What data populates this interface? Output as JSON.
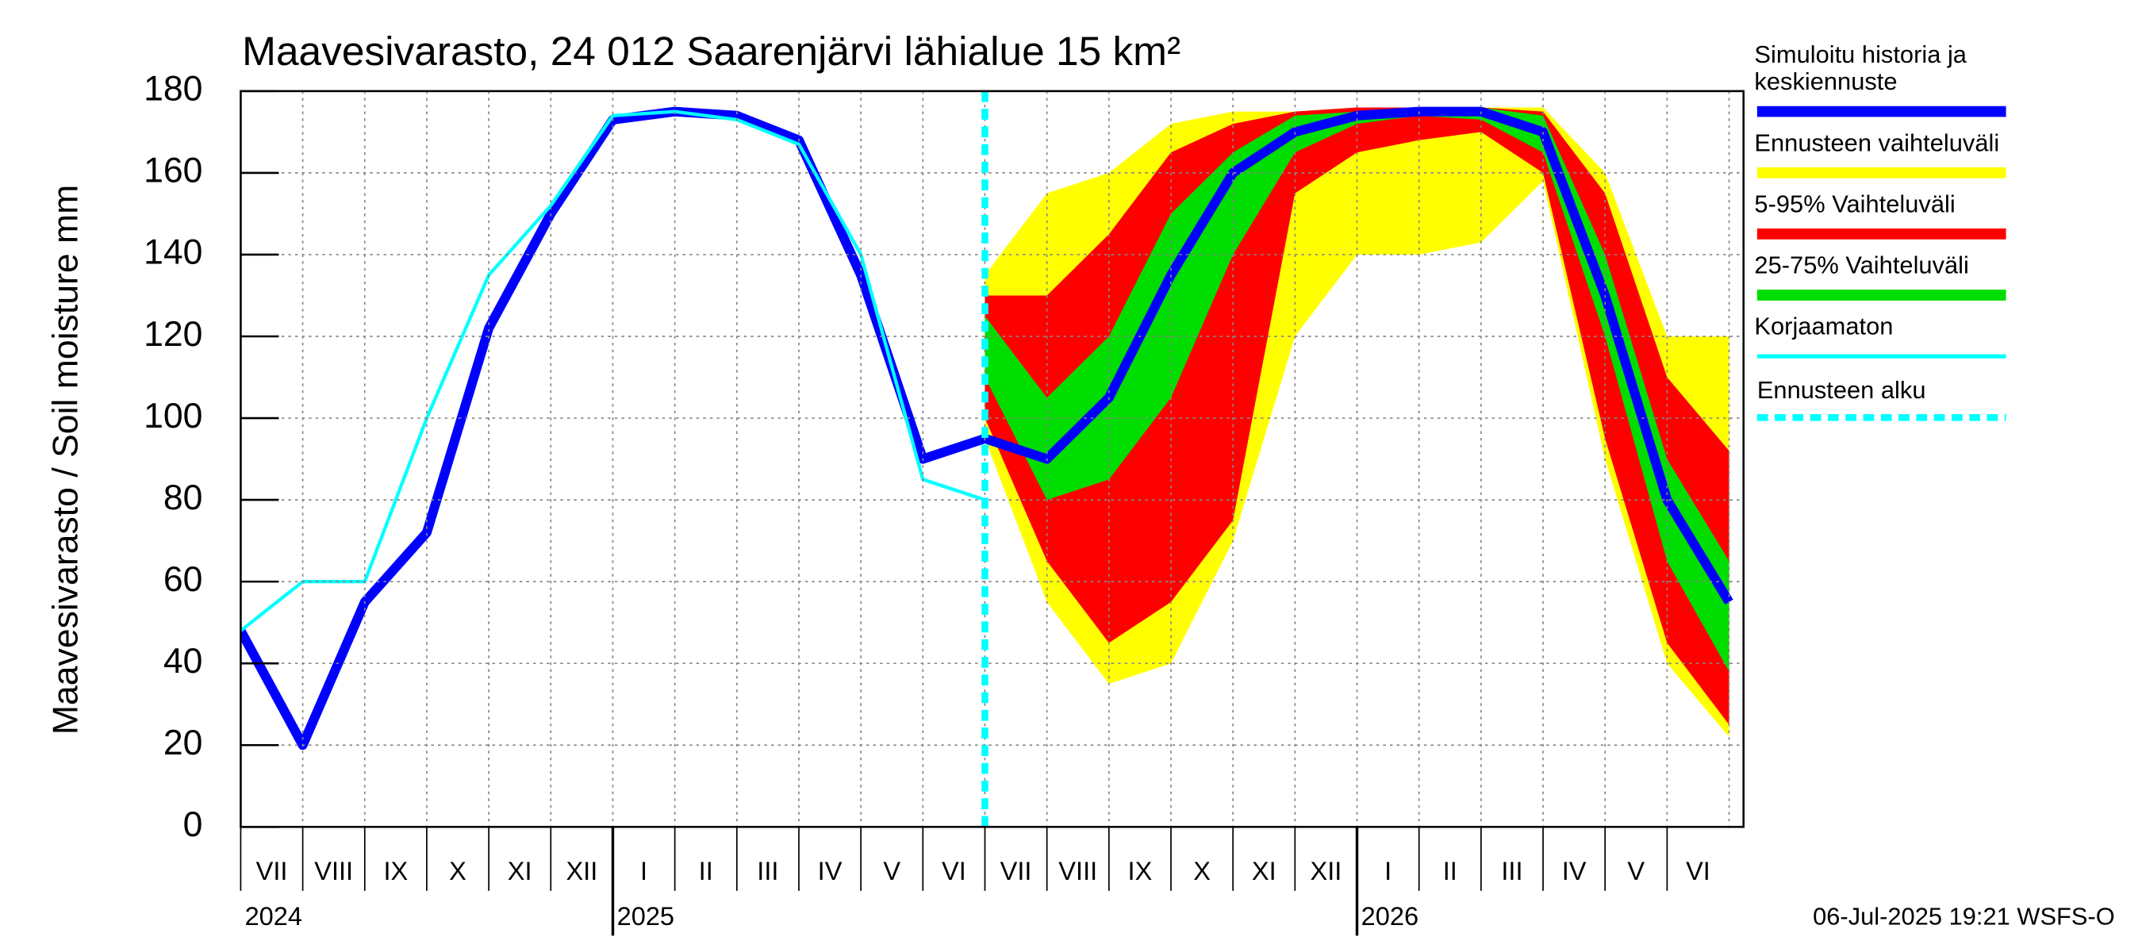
{
  "chart_data": {
    "type": "line",
    "title": "Maavesivarasto, 24 012 Saarenjärvi lähialue 15 km²",
    "y_label": "Maavesivarasto / Soil moisture   mm",
    "footer": "06-Jul-2025 19:21 WSFS-O",
    "x": [
      "2024-07",
      "2024-08",
      "2024-09",
      "2024-10",
      "2024-11",
      "2024-12",
      "2025-01",
      "2025-02",
      "2025-03",
      "2025-04",
      "2025-05",
      "2025-06",
      "2025-07",
      "2025-08",
      "2025-09",
      "2025-10",
      "2025-11",
      "2025-12",
      "2026-01",
      "2026-02",
      "2026-03",
      "2026-04",
      "2026-05",
      "2026-06",
      "2026-07"
    ],
    "month_labels": [
      "VII",
      "VIII",
      "IX",
      "X",
      "XI",
      "XII",
      "I",
      "II",
      "III",
      "IV",
      "V",
      "VI",
      "VII",
      "VIII",
      "IX",
      "X",
      "XI",
      "XII",
      "I",
      "II",
      "III",
      "IV",
      "V",
      "VI"
    ],
    "year_labels": [
      "2024",
      "2025",
      "2026"
    ],
    "ylim": [
      0,
      180
    ],
    "yticks": [
      0,
      20,
      40,
      60,
      80,
      100,
      120,
      140,
      160,
      180
    ],
    "grid": true,
    "forecast_start": "2025-07",
    "forecast_start_label": "Ennusteen alku",
    "forecast_start_color": "#00ffff",
    "series": [
      {
        "name": "Simuloitu historia ja keskiennuste",
        "color": "#0000ff",
        "values": [
          48,
          20,
          55,
          72,
          122,
          150,
          173,
          175,
          174,
          168,
          135,
          90,
          95,
          90,
          105,
          135,
          160,
          170,
          174,
          175,
          175,
          170,
          130,
          80,
          55
        ]
      },
      {
        "name": "Ennusteen vaihteluväli",
        "color": "#ffff00",
        "type": "band",
        "lower": [
          null,
          null,
          null,
          null,
          null,
          null,
          null,
          null,
          null,
          null,
          null,
          null,
          95,
          55,
          35,
          40,
          70,
          120,
          140,
          140,
          143,
          158,
          90,
          40,
          22
        ],
        "upper": [
          null,
          null,
          null,
          null,
          null,
          null,
          null,
          null,
          null,
          null,
          null,
          null,
          135,
          155,
          160,
          172,
          175,
          175,
          176,
          176,
          176,
          176,
          160,
          120,
          120
        ]
      },
      {
        "name": "5-95% Vaihteluväli",
        "color": "#ff0000",
        "type": "band",
        "lower": [
          null,
          null,
          null,
          null,
          null,
          null,
          null,
          null,
          null,
          null,
          null,
          null,
          100,
          65,
          45,
          55,
          75,
          155,
          165,
          168,
          170,
          160,
          95,
          45,
          25
        ],
        "upper": [
          null,
          null,
          null,
          null,
          null,
          null,
          null,
          null,
          null,
          null,
          null,
          null,
          130,
          130,
          145,
          165,
          172,
          175,
          176,
          176,
          176,
          175,
          155,
          110,
          92
        ]
      },
      {
        "name": "25-75% Vaihteluväli",
        "color": "#00dd00",
        "type": "band",
        "lower": [
          null,
          null,
          null,
          null,
          null,
          null,
          null,
          null,
          null,
          null,
          null,
          null,
          110,
          80,
          85,
          105,
          140,
          165,
          172,
          174,
          173,
          165,
          120,
          65,
          38
        ],
        "upper": [
          null,
          null,
          null,
          null,
          null,
          null,
          null,
          null,
          null,
          null,
          null,
          null,
          125,
          105,
          120,
          150,
          165,
          174,
          175,
          176,
          176,
          174,
          140,
          90,
          65
        ]
      },
      {
        "name": "Korjaamaton",
        "color": "#00ffff",
        "values": [
          48,
          60,
          60,
          100,
          135,
          152,
          174,
          175,
          173,
          167,
          140,
          85,
          80,
          null,
          null,
          null,
          null,
          null,
          null,
          null,
          null,
          null,
          null,
          null,
          null
        ]
      }
    ]
  }
}
